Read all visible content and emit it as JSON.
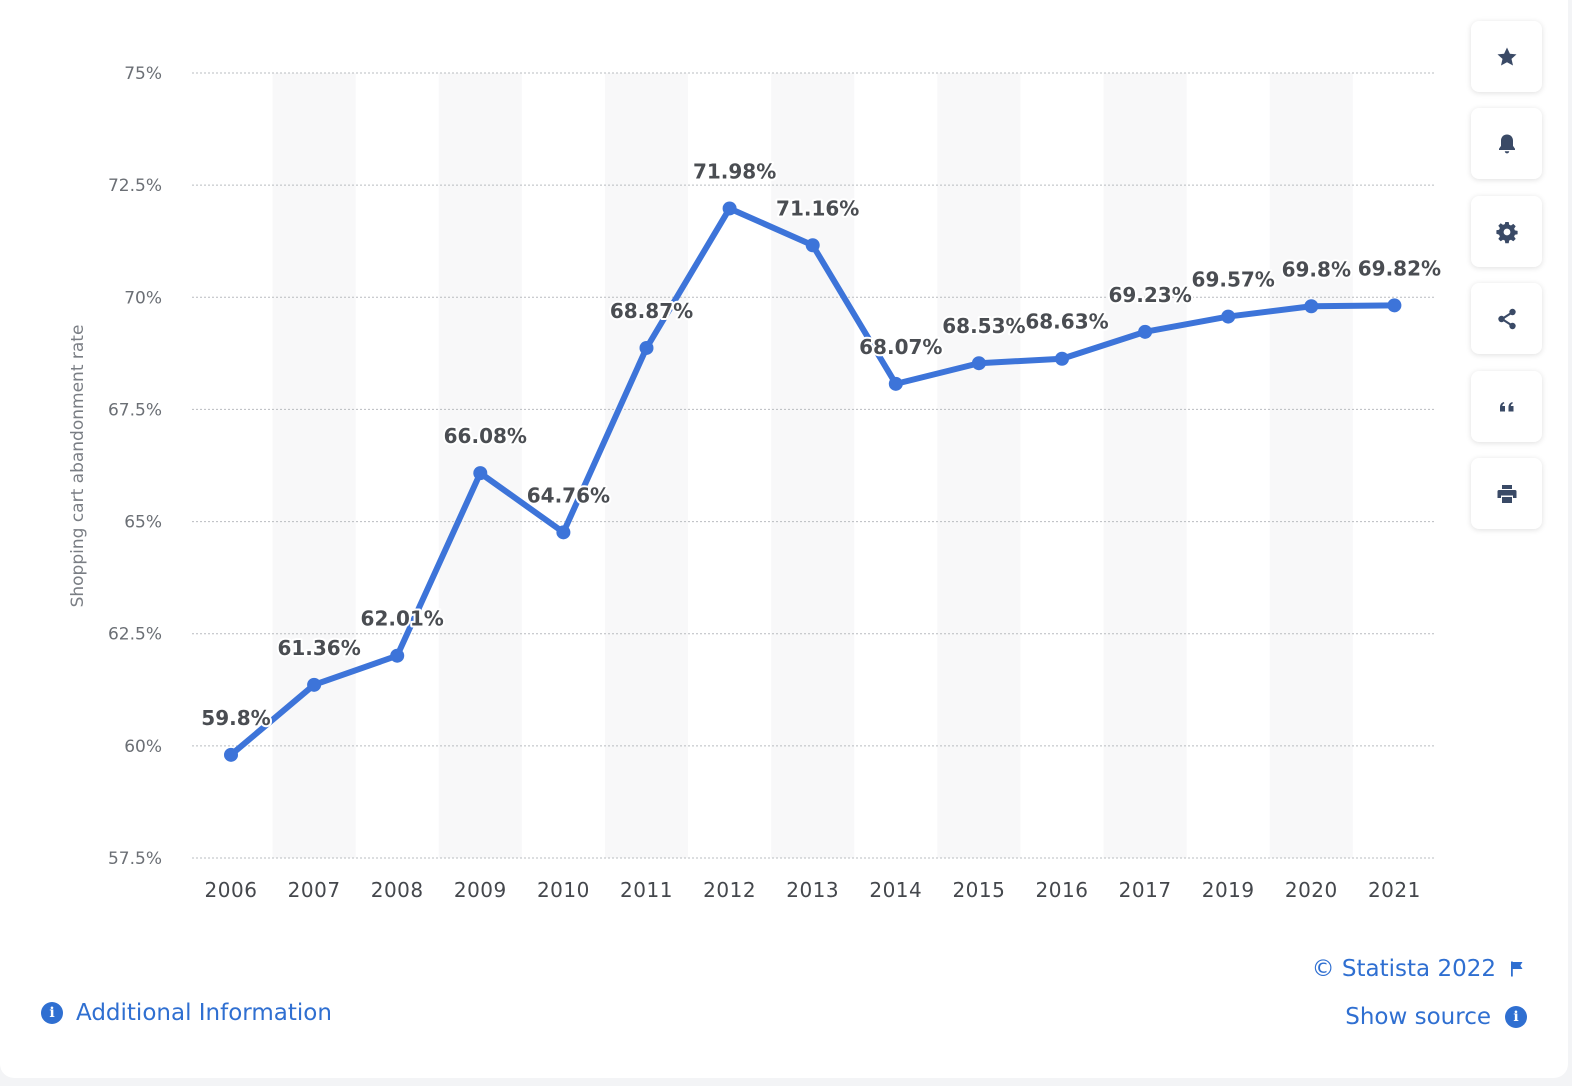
{
  "chart_data": {
    "type": "line",
    "categories": [
      "2006",
      "2007",
      "2008",
      "2009",
      "2010",
      "2011",
      "2012",
      "2013",
      "2014",
      "2015",
      "2016",
      "2017",
      "2019",
      "2020",
      "2021"
    ],
    "series": [
      {
        "values": [
          59.8,
          61.36,
          62.01,
          66.08,
          64.76,
          68.87,
          71.98,
          71.16,
          68.07,
          68.53,
          68.63,
          69.23,
          69.57,
          69.8,
          69.82
        ],
        "labels": [
          "59.8%",
          "61.36%",
          "62.01%",
          "66.08%",
          "64.76%",
          "68.87%",
          "71.98%",
          "71.16%",
          "68.07%",
          "68.53%",
          "68.63%",
          "69.23%",
          "69.57%",
          "69.8%",
          "69.82%"
        ]
      }
    ],
    "ylabel": "Shopping cart abandonment rate",
    "xlabel": "",
    "ylim": [
      57.5,
      75
    ],
    "yticks": [
      57.5,
      60,
      62.5,
      65,
      67.5,
      70,
      72.5,
      75
    ],
    "ytick_labels": [
      "57.5%",
      "60%",
      "62.5%",
      "65%",
      "67.5%",
      "70%",
      "72.5%",
      "75%"
    ],
    "grid": true,
    "line_color": "#3d74d9"
  },
  "toolbar": {
    "buttons": [
      "star-icon",
      "bell-icon",
      "gear-icon",
      "share-icon",
      "quote-icon",
      "print-icon"
    ]
  },
  "footer": {
    "additional_info": "Additional Information",
    "copyright": "© Statista 2022",
    "show_source": "Show source"
  },
  "colors": {
    "accent": "#2f6fd1",
    "line": "#3d74d9"
  }
}
